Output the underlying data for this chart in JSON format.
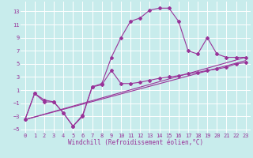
{
  "xlabel": "Windchill (Refroidissement éolien,°C)",
  "bg_color": "#c8ecec",
  "grid_color": "#ffffff",
  "line_color": "#993399",
  "xlim": [
    -0.5,
    23.5
  ],
  "ylim": [
    -5.5,
    14.5
  ],
  "xticks": [
    0,
    1,
    2,
    3,
    4,
    5,
    6,
    7,
    8,
    9,
    10,
    11,
    12,
    13,
    14,
    15,
    16,
    17,
    18,
    19,
    20,
    21,
    22,
    23
  ],
  "yticks": [
    -5,
    -3,
    -1,
    1,
    3,
    5,
    7,
    9,
    11,
    13
  ],
  "line1_x": [
    0,
    1,
    2,
    3,
    4,
    5,
    6,
    7,
    8,
    9,
    10,
    11,
    12,
    13,
    14,
    15,
    16,
    17,
    18,
    19,
    20,
    21,
    22,
    23
  ],
  "line1_y": [
    -3.5,
    0.5,
    -0.5,
    -0.8,
    -2.5,
    -4.5,
    -3.0,
    1.5,
    2.0,
    6.0,
    9.0,
    11.5,
    12.0,
    13.2,
    13.5,
    13.5,
    11.5,
    7.0,
    6.5,
    9.0,
    6.5,
    6.0,
    6.0,
    6.0
  ],
  "line2_x": [
    0,
    1,
    2,
    3,
    4,
    5,
    6,
    7,
    8,
    9,
    10,
    11,
    12,
    13,
    14,
    15,
    16,
    17,
    18,
    19,
    20,
    21,
    22,
    23
  ],
  "line2_y": [
    -3.5,
    0.5,
    -0.8,
    -0.8,
    -2.5,
    -4.5,
    -2.8,
    1.5,
    1.8,
    4.0,
    2.0,
    2.0,
    2.2,
    2.5,
    2.8,
    3.0,
    3.2,
    3.5,
    3.7,
    4.0,
    4.2,
    4.5,
    5.0,
    5.2
  ],
  "line3_x": [
    0,
    23
  ],
  "line3_y": [
    -3.5,
    6.0
  ],
  "line4_x": [
    0,
    23
  ],
  "line4_y": [
    -3.5,
    5.5
  ],
  "tick_fontsize": 5.0,
  "xlabel_fontsize": 5.5
}
